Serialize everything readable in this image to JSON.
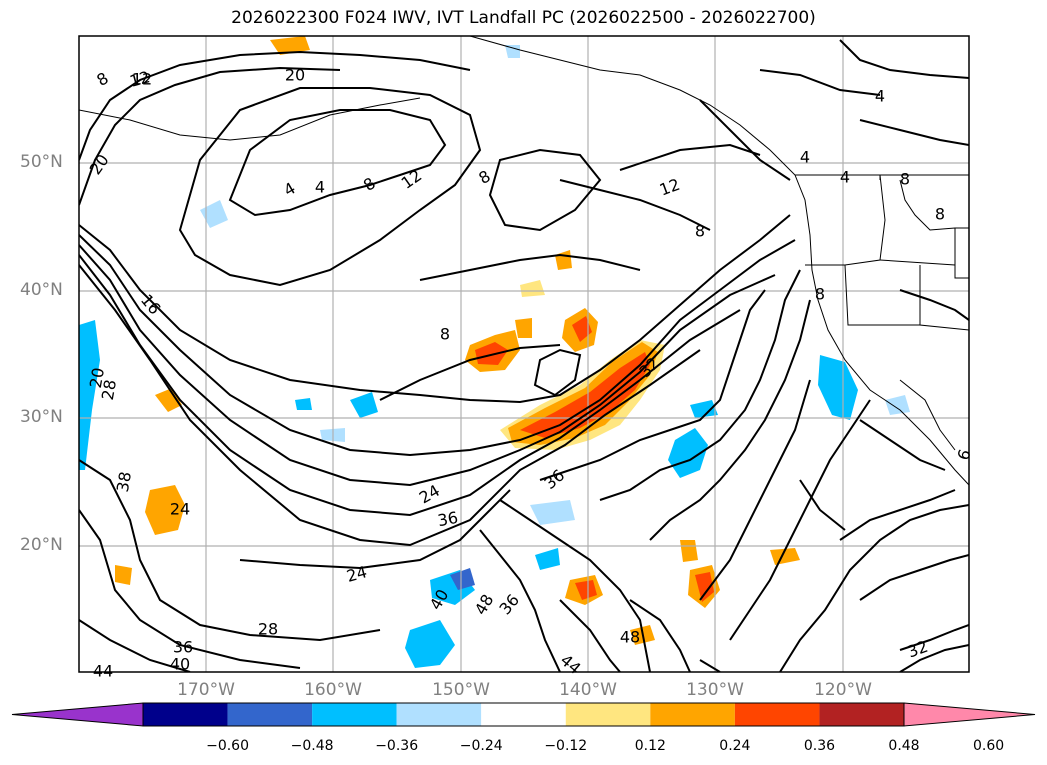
{
  "title": "2026022300 F024 IWV, IVT Landfall PC (2026022500 - 2026022700)",
  "lat_labels": [
    "50°N",
    "40°N",
    "30°N",
    "20°N"
  ],
  "lon_labels": [
    "170°W",
    "160°W",
    "150°W",
    "140°W",
    "130°W",
    "120°W"
  ],
  "colorbar": {
    "ticks": [
      "−0.60",
      "−0.48",
      "−0.36",
      "−0.24",
      "−0.12",
      "0.12",
      "0.24",
      "0.36",
      "0.48",
      "0.60"
    ],
    "colors": [
      "#9933cc",
      "#00008b",
      "#3366cc",
      "#00bfff",
      "#b0e0ff",
      "#ffffff",
      "#ffe680",
      "#ffa500",
      "#ff4500",
      "#b22222",
      "#ff88aa"
    ]
  },
  "contour_labels": [
    "12",
    "20",
    "8",
    "4",
    "12",
    "8",
    "12",
    "20",
    "16",
    "8",
    "8",
    "12",
    "36",
    "28",
    "24",
    "36",
    "24",
    "36",
    "28",
    "36",
    "40",
    "44",
    "48",
    "44",
    "48",
    "32",
    "40",
    "24",
    "8",
    "4",
    "4",
    "4",
    "4",
    "8",
    "8",
    "8",
    "32",
    "20",
    "38",
    "6"
  ]
}
